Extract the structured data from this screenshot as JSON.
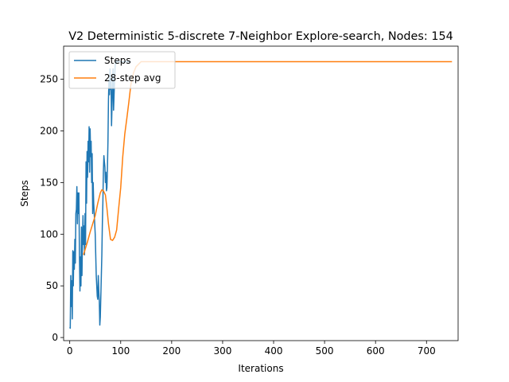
{
  "chart_data": {
    "type": "line",
    "title": "V2 Deterministic 5-discrete 7-Neighbor Explore-search,  Nodes: 154",
    "xlabel": "Iterations",
    "ylabel": "Steps",
    "xlim": [
      -12,
      762
    ],
    "ylim": [
      -3,
      282
    ],
    "xticks": [
      0,
      100,
      200,
      300,
      400,
      500,
      600,
      700
    ],
    "yticks": [
      0,
      50,
      100,
      150,
      200,
      250
    ],
    "legend_position": "top-left",
    "grid": false,
    "series": [
      {
        "name": "Steps",
        "color": "#1f77b4",
        "x": [
          0,
          1,
          2,
          3,
          4,
          5,
          6,
          7,
          8,
          9,
          10,
          11,
          12,
          13,
          14,
          15,
          16,
          17,
          18,
          19,
          20,
          21,
          22,
          23,
          24,
          25,
          26,
          27,
          28,
          29,
          30,
          31,
          32,
          33,
          34,
          35,
          36,
          37,
          38,
          39,
          40,
          41,
          42,
          43,
          44,
          45,
          46,
          47,
          48,
          49,
          50,
          51,
          52,
          53,
          54,
          55,
          56,
          57,
          58,
          59,
          60,
          61,
          62,
          63,
          64,
          65,
          66,
          67,
          68,
          69,
          70,
          71,
          72,
          73,
          74,
          75,
          76,
          77,
          78,
          79,
          80,
          81,
          82,
          83,
          84,
          85,
          86,
          87,
          88,
          89,
          90,
          91,
          92,
          93,
          94,
          95,
          96,
          97,
          98,
          99,
          100,
          101,
          102,
          103,
          104,
          105,
          106,
          107,
          108,
          109,
          110,
          111,
          112,
          113,
          114,
          115,
          116,
          117,
          118,
          119,
          120
        ],
        "y": [
          10,
          9,
          60,
          30,
          55,
          18,
          84,
          50,
          83,
          66,
          95,
          72,
          120,
          124,
          146,
          110,
          140,
          120,
          140,
          80,
          45,
          78,
          50,
          107,
          60,
          95,
          118,
          90,
          108,
          80,
          120,
          90,
          170,
          130,
          180,
          155,
          190,
          170,
          204,
          160,
          202,
          175,
          190,
          150,
          178,
          120,
          150,
          130,
          120,
          110,
          100,
          80,
          60,
          50,
          40,
          37,
          60,
          45,
          35,
          12,
          20,
          40,
          60,
          80,
          110,
          130,
          160,
          176,
          170,
          165,
          150,
          160,
          142,
          145,
          165,
          190,
          230,
          250,
          235,
          260,
          240,
          250,
          205,
          225,
          245,
          260,
          220,
          235,
          250,
          262,
          268,
          265,
          268,
          267,
          267,
          267,
          267,
          267,
          267,
          267,
          267,
          267,
          267,
          267,
          267,
          267,
          267,
          267,
          267,
          267,
          267,
          267,
          267,
          267,
          267,
          267,
          267,
          267,
          267,
          267,
          267
        ]
      },
      {
        "name": "28-step avg",
        "color": "#ff7f0e",
        "x": [
          27,
          30,
          35,
          40,
          45,
          50,
          55,
          60,
          63,
          66,
          70,
          73,
          76,
          80,
          84,
          88,
          92,
          96,
          100,
          104,
          108,
          112,
          116,
          120,
          125,
          130,
          140,
          150,
          200,
          300,
          400,
          500,
          600,
          700,
          750
        ],
        "y": [
          80,
          85,
          93,
          102,
          110,
          118,
          130,
          140,
          143,
          142,
          138,
          125,
          110,
          95,
          94,
          97,
          104,
          125,
          145,
          175,
          197,
          212,
          228,
          245,
          256,
          262,
          267,
          267,
          267,
          267,
          267,
          267,
          267,
          267,
          267
        ]
      }
    ]
  }
}
